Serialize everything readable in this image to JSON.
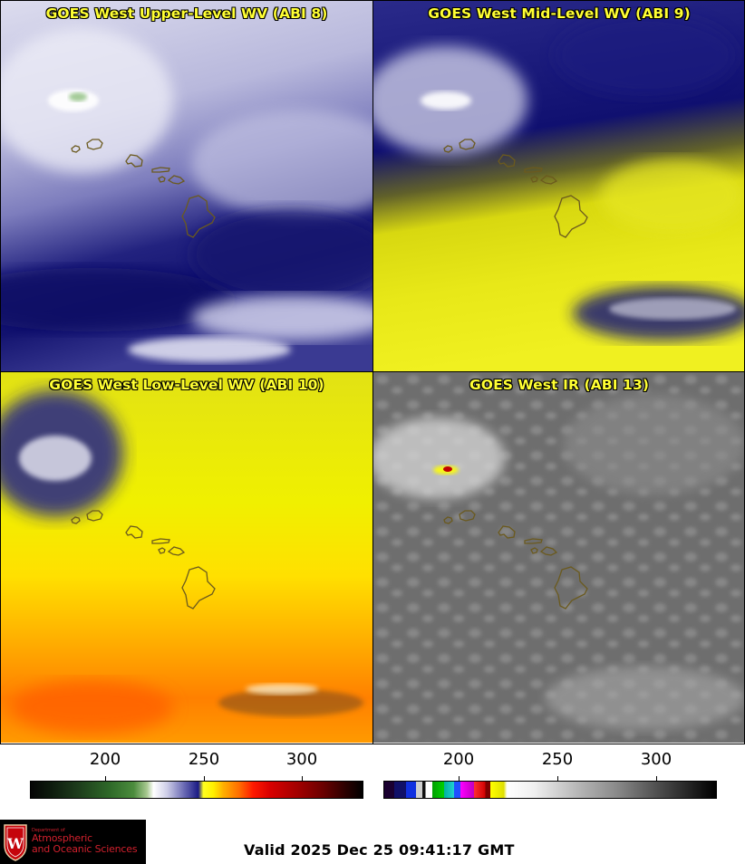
{
  "panels": [
    {
      "title": "GOES West Upper-Level WV (ABI 8)"
    },
    {
      "title": "GOES West Mid-Level WV (ABI 9)"
    },
    {
      "title": "GOES West Low-Level WV (ABI 10)"
    },
    {
      "title": "GOES West IR (ABI 13)"
    }
  ],
  "colorbars": {
    "left": {
      "ticks": [
        "200",
        "250",
        "300"
      ],
      "tick_values": [
        200,
        250,
        300
      ],
      "range": [
        163,
        333
      ]
    },
    "right": {
      "ticks": [
        "200",
        "250",
        "300"
      ],
      "tick_values": [
        200,
        250,
        300
      ],
      "range": [
        163,
        333
      ]
    }
  },
  "logo": {
    "dept": "Department of",
    "line1": "Atmospheric",
    "line2": "and Oceanic Sciences",
    "crest": "W"
  },
  "valid_time": "Valid 2025 Dec 25 09:41:17 GMT",
  "colors": {
    "title_text": "#ffff33",
    "coastline": "#6b5a1e"
  },
  "icons": [
    "uw-crest-icon"
  ]
}
